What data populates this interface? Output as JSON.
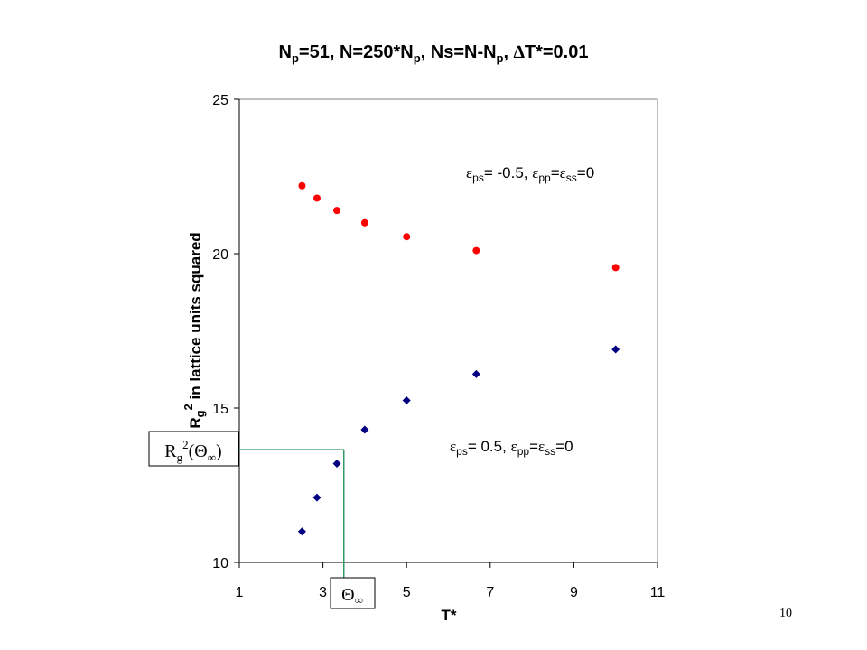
{
  "slide": {
    "page_number": "10",
    "title": {
      "np": "N",
      "np_sub": "p",
      "eq1": "=51, N=250*N",
      "np2_sub": "p",
      "mid": ", Ns=N-N",
      "np3_sub": "p",
      "sep": ", ",
      "delta": "∆",
      "tail": "T*=0.01"
    },
    "ylabel": {
      "r": "R",
      "g": "g",
      "sup": "2",
      "rest": " in lattice units squared"
    },
    "xlabel": "T*",
    "annotation_red": {
      "eps": "ε",
      "ps": "ps",
      "eq": "= -0.5, ",
      "eps2": "ε",
      "pp": "pp",
      "eq2": "=",
      "eps3": "ε",
      "ss": "ss",
      "tail": "=0"
    },
    "annotation_blue": {
      "eps": "ε",
      "ps": "ps",
      "eq": "= 0.5, ",
      "eps2": "ε",
      "pp": "pp",
      "eq2": "=",
      "eps3": "ε",
      "ss": "ss",
      "tail": "=0"
    },
    "box_rg": {
      "r": "R",
      "g": "g",
      "sup": "2",
      "paren": "(Θ",
      "inf": "∞",
      "close": ")"
    },
    "box_theta": {
      "theta": "Θ",
      "inf": "∞"
    }
  },
  "chart_data": {
    "type": "scatter",
    "title": "Np=51, N=250*Np, Ns=N-Np, ∆T*=0.01",
    "xlabel": "T*",
    "ylabel": "Rg2 in lattice units squared",
    "xlim": [
      1,
      11
    ],
    "ylim": [
      10,
      25
    ],
    "xticks": [
      1,
      3,
      5,
      7,
      9,
      11
    ],
    "yticks": [
      10,
      15,
      20,
      25
    ],
    "grid": false,
    "series": [
      {
        "name": "εps= -0.5, εpp=εss=0",
        "color": "#ff0000",
        "marker": "circle",
        "x": [
          2.5,
          2.857,
          3.333,
          4.0,
          5.0,
          6.667,
          10.0
        ],
        "y": [
          22.2,
          21.8,
          21.4,
          21.0,
          20.55,
          20.1,
          19.55
        ]
      },
      {
        "name": "εps= 0.5, εpp=εss=0",
        "color": "#000080",
        "marker": "diamond",
        "x": [
          2.5,
          2.857,
          3.333,
          4.0,
          5.0,
          6.667,
          10.0
        ],
        "y": [
          11.0,
          12.1,
          13.2,
          14.3,
          15.25,
          16.1,
          16.9
        ]
      }
    ],
    "reference_lines": {
      "color": "#339966",
      "theta_inf_x": 3.5,
      "rg2_theta_inf_y": 13.65
    }
  }
}
